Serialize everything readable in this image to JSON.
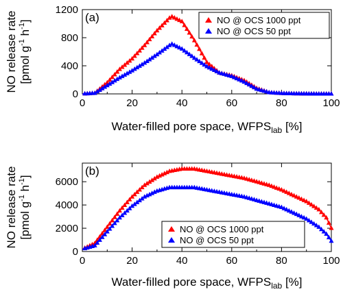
{
  "chart_data": [
    {
      "type": "line",
      "panel_label": "(a)",
      "xlabel_main": "Water-filled pore space, WFPS",
      "xlabel_sub": "lab",
      "xlabel_unit": " [%]",
      "ylabel_line1": "NO release rate",
      "ylabel_line2": "[pmol g",
      "ylabel_sup1": "-1",
      "ylabel_mid": " h",
      "ylabel_sup2": "-1",
      "ylabel_end": "]",
      "xlim": [
        0,
        100
      ],
      "ylim": [
        0,
        1200
      ],
      "xticks": [
        0,
        20,
        40,
        60,
        80,
        100
      ],
      "yticks": [
        0,
        400,
        800,
        1200
      ],
      "legend_position": "top-right",
      "x": [
        0,
        5,
        10,
        15,
        20,
        25,
        30,
        35,
        36,
        40,
        45,
        50,
        55,
        60,
        65,
        70,
        75,
        80,
        85,
        90,
        95,
        100
      ],
      "series": [
        {
          "name": "NO @ OCS 1000 ppt",
          "color": "#ff0000",
          "values": [
            0,
            10,
            160,
            350,
            500,
            690,
            900,
            1080,
            1100,
            1030,
            760,
            450,
            300,
            260,
            190,
            80,
            20,
            8,
            4,
            2,
            0,
            0
          ]
        },
        {
          "name": "NO @ OCS 50 ppt",
          "color": "#0000ff",
          "values": [
            0,
            10,
            120,
            230,
            330,
            440,
            560,
            690,
            710,
            640,
            510,
            390,
            300,
            250,
            170,
            70,
            20,
            8,
            4,
            2,
            0,
            0
          ]
        }
      ]
    },
    {
      "type": "line",
      "panel_label": "(b)",
      "xlabel_main": "Water-filled pore space, WFPS",
      "xlabel_sub": "lab",
      "xlabel_unit": " [%]",
      "ylabel_line1": "NO release rate",
      "ylabel_line2": "[pmol g",
      "ylabel_sup1": "-1",
      "ylabel_mid": " h",
      "ylabel_sup2": "-1",
      "ylabel_end": "]",
      "xlim": [
        0,
        100
      ],
      "ylim": [
        0,
        7600
      ],
      "xticks": [
        0,
        20,
        40,
        60,
        80,
        100
      ],
      "yticks": [
        0,
        2000,
        4000,
        6000
      ],
      "legend_position": "bottom-center",
      "x": [
        0,
        5,
        10,
        15,
        20,
        25,
        30,
        35,
        40,
        45,
        50,
        55,
        60,
        65,
        70,
        75,
        80,
        85,
        90,
        95,
        98,
        100
      ],
      "series": [
        {
          "name": "NO @ OCS 1000 ppt",
          "color": "#ff0000",
          "values": [
            200,
            700,
            2100,
            3500,
            4700,
            5700,
            6400,
            6900,
            7100,
            7100,
            6900,
            6700,
            6500,
            6300,
            6000,
            5700,
            5300,
            4800,
            4300,
            3600,
            2900,
            2000
          ]
        },
        {
          "name": "NO @ OCS 50 ppt",
          "color": "#0000ff",
          "values": [
            200,
            500,
            1700,
            2900,
            3900,
            4700,
            5200,
            5500,
            5500,
            5500,
            5300,
            5100,
            4900,
            4700,
            4400,
            4100,
            3800,
            3300,
            2800,
            2100,
            1500,
            900
          ]
        }
      ]
    }
  ]
}
